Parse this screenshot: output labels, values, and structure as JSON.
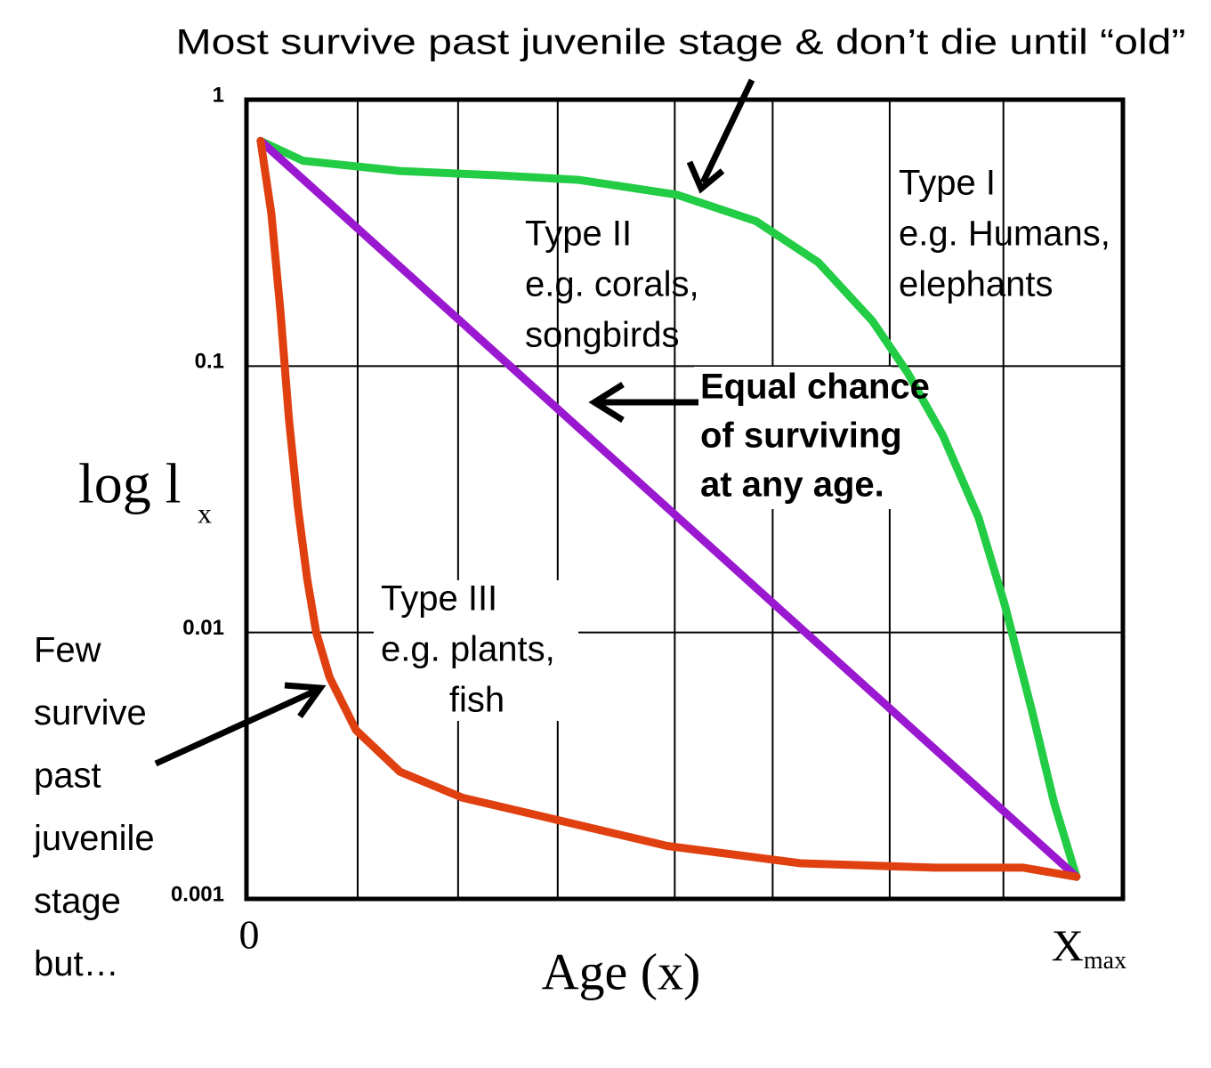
{
  "chart_data": {
    "type": "line",
    "yscale": "log",
    "ylabel": {
      "text": "log l",
      "subscript": "x"
    },
    "xlabel": "Age (x)",
    "ylim": [
      0.001,
      1
    ],
    "yticks": [
      1,
      0.1,
      0.01,
      0.001
    ],
    "xlim": [
      0,
      1.056
    ],
    "xticks": [
      0,
      {
        "value": 1,
        "label": "X",
        "subscript": "max"
      }
    ],
    "xgrid_lines": [
      0.134,
      0.255,
      0.375,
      0.516,
      0.634,
      0.775,
      0.912
    ],
    "grid": true,
    "series": [
      {
        "color": "#22cc44",
        "x": [
          0.017,
          0.068,
          0.185,
          0.303,
          0.4,
          0.518,
          0.614,
          0.689,
          0.754,
          0.797,
          0.839,
          0.882,
          0.914,
          0.947,
          0.973,
          1.0
        ],
        "values": [
          0.7,
          0.59,
          0.54,
          0.52,
          0.5,
          0.44,
          0.35,
          0.245,
          0.148,
          0.094,
          0.055,
          0.027,
          0.0126,
          0.005,
          0.0023,
          0.00121
        ]
      },
      {
        "color": "#9a18d0",
        "x": [
          0.017,
          1.0
        ],
        "values": [
          0.7,
          0.00121
        ]
      },
      {
        "color": "#e04010",
        "x": [
          0.017,
          0.03,
          0.041,
          0.051,
          0.062,
          0.073,
          0.084,
          0.1,
          0.132,
          0.185,
          0.26,
          0.368,
          0.507,
          0.668,
          0.829,
          0.936,
          1.0
        ],
        "values": [
          0.7,
          0.373,
          0.16,
          0.064,
          0.0295,
          0.016,
          0.01,
          0.0068,
          0.0043,
          0.003,
          0.0024,
          0.002,
          0.00158,
          0.00136,
          0.00131,
          0.00131,
          0.00121
        ]
      }
    ],
    "annotations": [
      {
        "lines": [
          "Most survive past juvenile stage & don’t die until “old”"
        ]
      },
      {
        "lines": [
          "Type I",
          "e.g. Humans,",
          "elephants"
        ]
      },
      {
        "lines": [
          "Type II",
          "e.g. corals,",
          "songbirds"
        ]
      },
      {
        "lines": [
          "Equal chance",
          "of surviving",
          "at any age."
        ]
      },
      {
        "lines": [
          "Type III",
          "e.g. plants,",
          "fish"
        ]
      },
      {
        "lines": [
          "Few",
          "survive",
          "past",
          "juvenile",
          "stage",
          "but…"
        ]
      }
    ]
  }
}
